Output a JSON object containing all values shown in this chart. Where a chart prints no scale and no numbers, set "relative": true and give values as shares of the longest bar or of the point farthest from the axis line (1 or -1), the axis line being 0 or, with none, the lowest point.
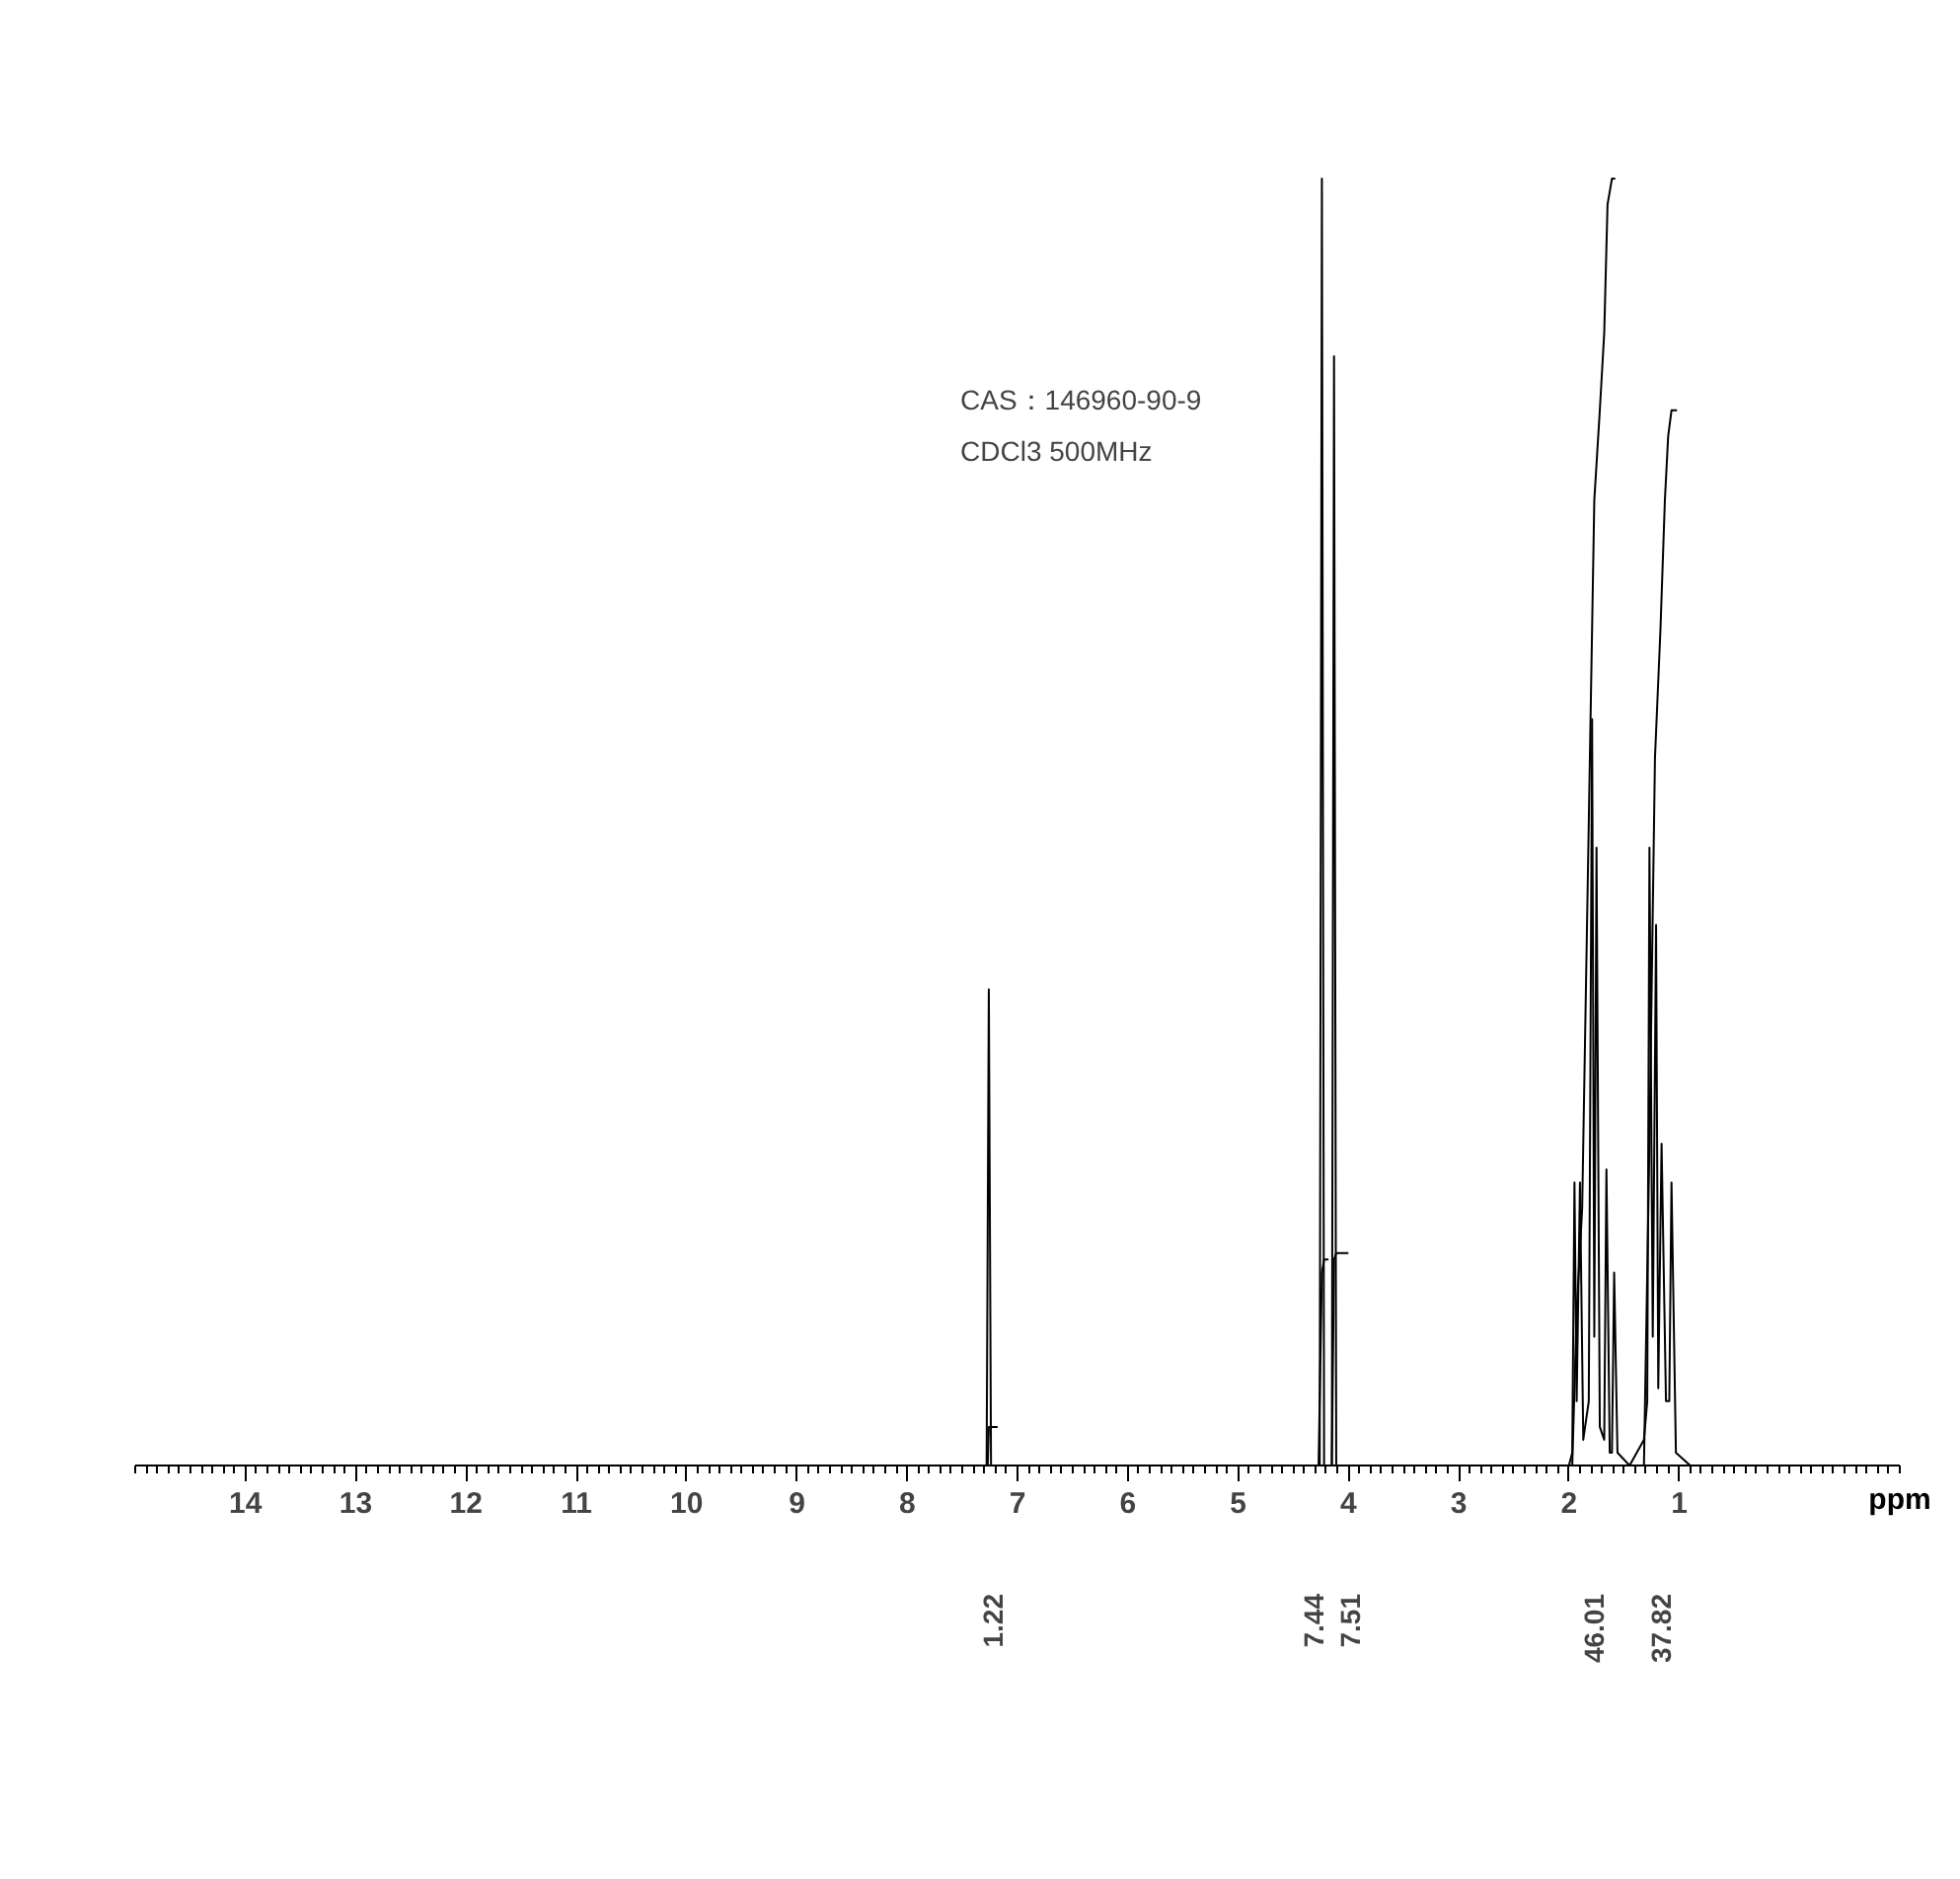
{
  "chart_data": {
    "type": "line",
    "relative": true,
    "xlabel": "ppm",
    "xlim": [
      15,
      -1
    ],
    "xticks": [
      14,
      13,
      12,
      11,
      10,
      9,
      8,
      7,
      6,
      5,
      4,
      3,
      2,
      1
    ],
    "marker": "none",
    "line_style": "solid",
    "series": [
      {
        "color": "#000000",
        "x": [
          15,
          7.4,
          7.28,
          7.26,
          7.24,
          4.5,
          4.26,
          4.24,
          4.22,
          4.15,
          4.13,
          4.11,
          3.8,
          2.0,
          1.97,
          1.95,
          1.93,
          1.9,
          1.87,
          1.82,
          1.79,
          1.77,
          1.75,
          1.72,
          1.68,
          1.66,
          1.63,
          1.61,
          1.59,
          1.56,
          1.45,
          1.32,
          1.29,
          1.27,
          1.24,
          1.21,
          1.19,
          1.16,
          1.12,
          1.09,
          1.07,
          1.03,
          0.9,
          -1
        ],
        "values": [
          0,
          0,
          0,
          0.37,
          0,
          0,
          0,
          1,
          0,
          0,
          0.862,
          0,
          0,
          0,
          0.01,
          0.22,
          0.05,
          0.22,
          0.02,
          0.05,
          0.58,
          0.1,
          0.48,
          0.03,
          0.02,
          0.23,
          0.01,
          0.01,
          0.15,
          0.01,
          0,
          0.02,
          0.05,
          0.48,
          0.1,
          0.42,
          0.06,
          0.25,
          0.05,
          0.05,
          0.22,
          0.01,
          0,
          0
        ]
      },
      {
        "color": "#000000",
        "x": [
          7.27,
          7.26,
          7.18
        ],
        "values": [
          0,
          0.03,
          0.03
        ]
      },
      {
        "color": "#000000",
        "x": [
          4.27,
          4.24,
          4.22,
          4.18
        ],
        "values": [
          0,
          0.15,
          0.16,
          0.16
        ]
      },
      {
        "color": "#000000",
        "x": [
          4.15,
          4.13,
          4.11,
          4.0
        ],
        "values": [
          0,
          0.16,
          0.165,
          0.165
        ]
      },
      {
        "color": "#000000",
        "x": [
          1.97,
          1.93,
          1.88,
          1.82,
          1.77,
          1.72,
          1.68,
          1.65,
          1.61,
          1.58
        ],
        "values": [
          0,
          0.12,
          0.2,
          0.5,
          0.75,
          0.82,
          0.88,
          0.98,
          1.0,
          1.0
        ]
      },
      {
        "color": "#000000",
        "x": [
          1.32,
          1.27,
          1.22,
          1.17,
          1.13,
          1.1,
          1.07,
          1.02
        ],
        "values": [
          0,
          0.25,
          0.55,
          0.65,
          0.75,
          0.8,
          0.82,
          0.82
        ]
      }
    ],
    "annotations": [
      "CAS：146960-90-9",
      "CDCl3   500MHz",
      "1.22",
      "7.44",
      "7.51",
      "46.01",
      "37.82"
    ]
  }
}
